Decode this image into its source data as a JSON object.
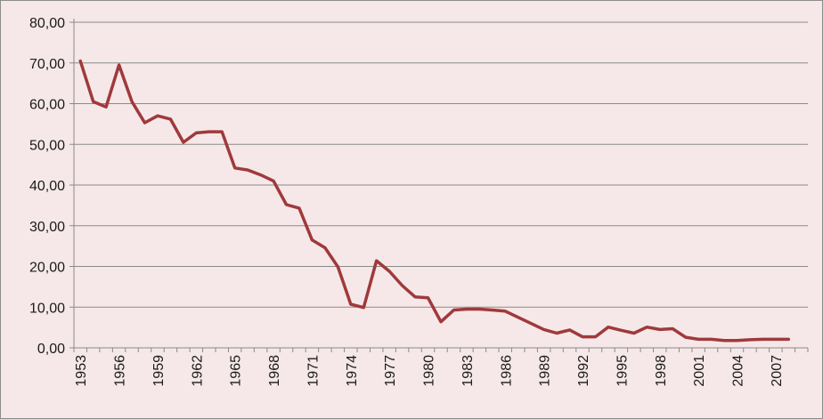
{
  "chart_data": {
    "type": "line",
    "title": "",
    "xlabel": "",
    "ylabel": "",
    "ylim": [
      0,
      80
    ],
    "y_ticks": [
      "0,00",
      "10,00",
      "20,00",
      "30,00",
      "40,00",
      "50,00",
      "60,00",
      "70,00",
      "80,00"
    ],
    "x_tick_labels": [
      "1953",
      "1956",
      "1959",
      "1962",
      "1965",
      "1968",
      "1971",
      "1974",
      "1977",
      "1980",
      "1983",
      "1986",
      "1989",
      "1992",
      "1995",
      "1998",
      "2001",
      "2004",
      "2007"
    ],
    "grid": true,
    "legend": "none",
    "line_color": "#a0393b",
    "series": [
      {
        "x": [
          1953,
          1954,
          1955,
          1956,
          1957,
          1958,
          1959,
          1960,
          1961,
          1962,
          1963,
          1964,
          1965,
          1966,
          1967,
          1968,
          1969,
          1970,
          1971,
          1972,
          1973,
          1974,
          1975,
          1976,
          1977,
          1978,
          1979,
          1980,
          1981,
          1982,
          1983,
          1984,
          1985,
          1986,
          1987,
          1988,
          1989,
          1990,
          1991,
          1992,
          1993,
          1994,
          1995,
          1996,
          1997,
          1998,
          1999,
          2000,
          2001,
          2002,
          2003,
          2004,
          2005,
          2006,
          2007,
          2008
        ],
        "values": [
          70.5,
          60.5,
          59.2,
          69.5,
          60.5,
          55.3,
          57.0,
          56.2,
          50.5,
          52.8,
          53.1,
          53.1,
          44.2,
          43.7,
          42.5,
          41.0,
          35.2,
          34.3,
          26.5,
          24.6,
          19.9,
          10.7,
          9.9,
          21.4,
          18.8,
          15.3,
          12.5,
          12.3,
          6.4,
          9.3,
          9.5,
          9.5,
          9.3,
          9.0,
          7.5,
          6.0,
          4.5,
          3.6,
          4.4,
          2.7,
          2.7,
          5.1,
          4.3,
          3.6,
          5.1,
          4.5,
          4.7,
          2.6,
          2.1,
          2.1,
          1.8,
          1.8,
          2.0,
          2.1,
          2.1,
          2.1
        ]
      }
    ]
  }
}
